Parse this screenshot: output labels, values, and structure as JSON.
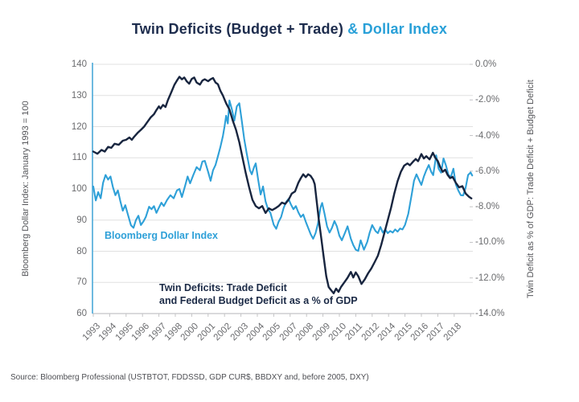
{
  "title": {
    "deficits_part": "Twin Deficits (Budget + Trade)",
    "dollar_part": " & Dollar Index"
  },
  "source": "Source: Bloomberg Professional (USTBTOT, FDDSSD, GDP CUR$, BBDXY and, before 2005, DXY)",
  "colors": {
    "navy": "#18253f",
    "blue": "#2ea0d8",
    "grid": "#e0e0e0",
    "axis_gray": "#c4c4c6",
    "tick_text": "#6a6b6e",
    "left_axis_line": "#4aa8d8"
  },
  "chart_data": {
    "type": "line",
    "x_unit": "tick index into x_labels (ticks evenly spaced; 1999, 2006, 2013 are skipped on the axis)",
    "x_labels": [
      "1993",
      "1994",
      "1995",
      "1996",
      "1997",
      "1998",
      "2000",
      "2001",
      "2002",
      "2003",
      "2004",
      "2005",
      "2007",
      "2008",
      "2009",
      "2010",
      "2011",
      "2012",
      "2014",
      "2015",
      "2016",
      "2017",
      "2018"
    ],
    "x_range": [
      0,
      23.2
    ],
    "grid": true,
    "legend_position": "none (in-plot text annotations)",
    "left_axis": {
      "label": "Bloomberg Dollar Index: January 1993 = 100",
      "ticks": [
        140,
        130,
        120,
        110,
        100,
        90,
        80,
        70,
        60
      ],
      "range": [
        60,
        140
      ]
    },
    "right_axis": {
      "label": "Twin Deficit as % of GDP: Trade Deficit + Budget Deficit",
      "tick_labels": [
        "0.0%",
        "-2.0%",
        "-4.0%",
        "-6.0%",
        "-8.0%",
        "-10.0%",
        "-12.0%",
        "-14.0%"
      ],
      "ticks": [
        0,
        -2,
        -4,
        -6,
        -8,
        -10,
        -12,
        -14
      ],
      "range": [
        -14,
        0
      ]
    },
    "series": [
      {
        "name": "Bloomberg Dollar Index",
        "axis": "left",
        "color": "#2ea0d8",
        "points": [
          [
            0,
            100.8
          ],
          [
            0.15,
            96.3
          ],
          [
            0.3,
            99
          ],
          [
            0.45,
            97
          ],
          [
            0.6,
            102
          ],
          [
            0.75,
            104.5
          ],
          [
            0.9,
            103
          ],
          [
            1.05,
            104
          ],
          [
            1.2,
            100.5
          ],
          [
            1.35,
            98
          ],
          [
            1.5,
            99.5
          ],
          [
            1.65,
            96
          ],
          [
            1.8,
            93
          ],
          [
            1.95,
            94.8
          ],
          [
            2.1,
            92
          ],
          [
            2.3,
            88.3
          ],
          [
            2.45,
            87.5
          ],
          [
            2.6,
            90
          ],
          [
            2.75,
            91.4
          ],
          [
            2.9,
            88.4
          ],
          [
            3.05,
            89.5
          ],
          [
            3.2,
            91
          ],
          [
            3.4,
            94.3
          ],
          [
            3.55,
            93.5
          ],
          [
            3.7,
            94.5
          ],
          [
            3.85,
            92.3
          ],
          [
            4,
            94
          ],
          [
            4.15,
            95.6
          ],
          [
            4.3,
            94.5
          ],
          [
            4.5,
            96.5
          ],
          [
            4.7,
            98
          ],
          [
            4.9,
            97
          ],
          [
            5.1,
            99.5
          ],
          [
            5.25,
            100
          ],
          [
            5.4,
            97.4
          ],
          [
            5.6,
            101
          ],
          [
            5.75,
            104
          ],
          [
            5.9,
            101.8
          ],
          [
            6.1,
            104.5
          ],
          [
            6.3,
            107
          ],
          [
            6.5,
            106
          ],
          [
            6.65,
            108.8
          ],
          [
            6.8,
            109
          ],
          [
            7,
            105.5
          ],
          [
            7.15,
            102.6
          ],
          [
            7.3,
            106
          ],
          [
            7.45,
            107.7
          ],
          [
            7.6,
            110.5
          ],
          [
            7.75,
            113.5
          ],
          [
            7.9,
            117
          ],
          [
            8,
            120
          ],
          [
            8.1,
            123.5
          ],
          [
            8.2,
            121
          ],
          [
            8.3,
            128.4
          ],
          [
            8.45,
            125.5
          ],
          [
            8.6,
            121.9
          ],
          [
            8.75,
            126.5
          ],
          [
            8.9,
            127.5
          ],
          [
            9.05,
            122
          ],
          [
            9.2,
            116
          ],
          [
            9.35,
            111.5
          ],
          [
            9.55,
            106
          ],
          [
            9.66,
            104.7
          ],
          [
            9.8,
            107
          ],
          [
            9.9,
            108.2
          ],
          [
            10.05,
            103
          ],
          [
            10.2,
            98.2
          ],
          [
            10.35,
            100.8
          ],
          [
            10.5,
            96
          ],
          [
            10.65,
            93.5
          ],
          [
            10.8,
            92.3
          ],
          [
            11,
            88.5
          ],
          [
            11.15,
            87.2
          ],
          [
            11.3,
            89.5
          ],
          [
            11.45,
            91
          ],
          [
            11.6,
            93.8
          ],
          [
            11.75,
            95.8
          ],
          [
            11.9,
            96.8
          ],
          [
            12.05,
            95
          ],
          [
            12.2,
            93.5
          ],
          [
            12.35,
            94.5
          ],
          [
            12.5,
            92.5
          ],
          [
            12.65,
            91
          ],
          [
            12.8,
            91.8
          ],
          [
            12.95,
            89.5
          ],
          [
            13.1,
            87.5
          ],
          [
            13.25,
            85.5
          ],
          [
            13.4,
            84
          ],
          [
            13.55,
            85.8
          ],
          [
            13.7,
            89
          ],
          [
            13.85,
            94
          ],
          [
            13.95,
            95.5
          ],
          [
            14.1,
            92
          ],
          [
            14.25,
            88
          ],
          [
            14.4,
            86
          ],
          [
            14.55,
            87.5
          ],
          [
            14.7,
            89.7
          ],
          [
            14.85,
            88
          ],
          [
            15,
            85
          ],
          [
            15.15,
            83.5
          ],
          [
            15.35,
            86
          ],
          [
            15.5,
            88
          ],
          [
            15.7,
            84
          ],
          [
            15.85,
            82
          ],
          [
            16,
            80.5
          ],
          [
            16.15,
            80.1
          ],
          [
            16.3,
            83.5
          ],
          [
            16.5,
            80.5
          ],
          [
            16.7,
            83
          ],
          [
            16.85,
            86
          ],
          [
            17,
            88.4
          ],
          [
            17.2,
            86.5
          ],
          [
            17.35,
            85.8
          ],
          [
            17.5,
            87.8
          ],
          [
            17.65,
            86
          ],
          [
            17.8,
            87
          ],
          [
            17.95,
            85.8
          ],
          [
            18.1,
            86.5
          ],
          [
            18.25,
            86
          ],
          [
            18.4,
            87
          ],
          [
            18.55,
            86.3
          ],
          [
            18.7,
            87.3
          ],
          [
            18.85,
            87
          ],
          [
            19,
            88.4
          ],
          [
            19.2,
            92
          ],
          [
            19.4,
            98
          ],
          [
            19.55,
            102.6
          ],
          [
            19.7,
            104.7
          ],
          [
            19.85,
            103
          ],
          [
            20,
            101.3
          ],
          [
            20.15,
            104
          ],
          [
            20.3,
            106
          ],
          [
            20.45,
            107.7
          ],
          [
            20.6,
            105.5
          ],
          [
            20.72,
            104.4
          ],
          [
            20.9,
            110.8
          ],
          [
            21.05,
            106.5
          ],
          [
            21.2,
            105.2
          ],
          [
            21.35,
            109.8
          ],
          [
            21.5,
            107.5
          ],
          [
            21.65,
            104.5
          ],
          [
            21.8,
            103.9
          ],
          [
            21.95,
            106.5
          ],
          [
            22.1,
            101.5
          ],
          [
            22.25,
            99.5
          ],
          [
            22.4,
            98
          ],
          [
            22.55,
            97.9
          ],
          [
            22.7,
            100.5
          ],
          [
            22.85,
            104.5
          ],
          [
            23,
            105.3
          ],
          [
            23.1,
            104.3
          ]
        ]
      },
      {
        "name": "Twin Deficits: Trade Deficit and Federal Budget Deficit as a % of GDP",
        "axis": "right",
        "color": "#18253f",
        "points": [
          [
            0,
            -4.9
          ],
          [
            0.25,
            -5.02
          ],
          [
            0.5,
            -4.81
          ],
          [
            0.7,
            -4.9
          ],
          [
            0.9,
            -4.64
          ],
          [
            1.1,
            -4.69
          ],
          [
            1.3,
            -4.46
          ],
          [
            1.55,
            -4.52
          ],
          [
            1.8,
            -4.29
          ],
          [
            2,
            -4.24
          ],
          [
            2.2,
            -4.11
          ],
          [
            2.35,
            -4.24
          ],
          [
            2.5,
            -4.06
          ],
          [
            2.7,
            -3.85
          ],
          [
            2.9,
            -3.68
          ],
          [
            3.1,
            -3.5
          ],
          [
            3.3,
            -3.24
          ],
          [
            3.5,
            -2.98
          ],
          [
            3.7,
            -2.8
          ],
          [
            3.85,
            -2.57
          ],
          [
            4,
            -2.36
          ],
          [
            4.1,
            -2.49
          ],
          [
            4.25,
            -2.28
          ],
          [
            4.4,
            -2.4
          ],
          [
            4.55,
            -2.01
          ],
          [
            4.75,
            -1.58
          ],
          [
            4.95,
            -1.14
          ],
          [
            5.1,
            -0.91
          ],
          [
            5.25,
            -0.7
          ],
          [
            5.4,
            -0.84
          ],
          [
            5.55,
            -0.74
          ],
          [
            5.7,
            -0.96
          ],
          [
            5.85,
            -1.09
          ],
          [
            6,
            -0.82
          ],
          [
            6.15,
            -0.74
          ],
          [
            6.3,
            -1.02
          ],
          [
            6.5,
            -1.14
          ],
          [
            6.65,
            -0.91
          ],
          [
            6.8,
            -0.84
          ],
          [
            7,
            -0.95
          ],
          [
            7.15,
            -0.84
          ],
          [
            7.3,
            -0.77
          ],
          [
            7.45,
            -1.02
          ],
          [
            7.6,
            -1.12
          ],
          [
            7.75,
            -1.49
          ],
          [
            7.9,
            -1.75
          ],
          [
            8.1,
            -2.19
          ],
          [
            8.3,
            -2.54
          ],
          [
            8.5,
            -3.15
          ],
          [
            8.7,
            -3.68
          ],
          [
            8.9,
            -4.38
          ],
          [
            9.1,
            -5.25
          ],
          [
            9.3,
            -6.13
          ],
          [
            9.5,
            -6.91
          ],
          [
            9.7,
            -7.61
          ],
          [
            9.9,
            -7.96
          ],
          [
            10.1,
            -8.09
          ],
          [
            10.3,
            -7.96
          ],
          [
            10.5,
            -8.35
          ],
          [
            10.7,
            -8.09
          ],
          [
            10.9,
            -8.19
          ],
          [
            11.1,
            -8.09
          ],
          [
            11.3,
            -7.96
          ],
          [
            11.5,
            -7.77
          ],
          [
            11.7,
            -7.84
          ],
          [
            11.9,
            -7.61
          ],
          [
            12.1,
            -7.26
          ],
          [
            12.3,
            -7.14
          ],
          [
            12.5,
            -6.65
          ],
          [
            12.65,
            -6.39
          ],
          [
            12.8,
            -6.18
          ],
          [
            12.95,
            -6.34
          ],
          [
            13.1,
            -6.18
          ],
          [
            13.25,
            -6.27
          ],
          [
            13.4,
            -6.48
          ],
          [
            13.5,
            -6.74
          ],
          [
            13.6,
            -7.53
          ],
          [
            13.75,
            -8.75
          ],
          [
            13.9,
            -9.8
          ],
          [
            14.05,
            -10.85
          ],
          [
            14.2,
            -11.9
          ],
          [
            14.35,
            -12.51
          ],
          [
            14.5,
            -12.69
          ],
          [
            14.65,
            -12.86
          ],
          [
            14.8,
            -12.6
          ],
          [
            14.95,
            -12.78
          ],
          [
            15.1,
            -12.51
          ],
          [
            15.3,
            -12.25
          ],
          [
            15.5,
            -11.99
          ],
          [
            15.7,
            -11.66
          ],
          [
            15.85,
            -11.97
          ],
          [
            16,
            -11.69
          ],
          [
            16.15,
            -11.9
          ],
          [
            16.35,
            -12.34
          ],
          [
            16.55,
            -12.08
          ],
          [
            16.75,
            -11.74
          ],
          [
            16.95,
            -11.46
          ],
          [
            17.15,
            -11.11
          ],
          [
            17.35,
            -10.75
          ],
          [
            17.55,
            -10.15
          ],
          [
            17.75,
            -9.45
          ],
          [
            17.95,
            -8.75
          ],
          [
            18.15,
            -8.05
          ],
          [
            18.35,
            -7.26
          ],
          [
            18.55,
            -6.56
          ],
          [
            18.75,
            -6.04
          ],
          [
            18.95,
            -5.69
          ],
          [
            19.15,
            -5.57
          ],
          [
            19.3,
            -5.67
          ],
          [
            19.5,
            -5.46
          ],
          [
            19.65,
            -5.32
          ],
          [
            19.8,
            -5.44
          ],
          [
            20,
            -5.04
          ],
          [
            20.15,
            -5.29
          ],
          [
            20.3,
            -5.16
          ],
          [
            20.5,
            -5.34
          ],
          [
            20.7,
            -4.97
          ],
          [
            20.85,
            -5.25
          ],
          [
            21,
            -5.43
          ],
          [
            21.15,
            -5.78
          ],
          [
            21.3,
            -6.04
          ],
          [
            21.45,
            -5.92
          ],
          [
            21.6,
            -6.21
          ],
          [
            21.75,
            -6.39
          ],
          [
            21.9,
            -6.32
          ],
          [
            22.1,
            -6.65
          ],
          [
            22.3,
            -6.91
          ],
          [
            22.5,
            -6.84
          ],
          [
            22.7,
            -7.26
          ],
          [
            22.9,
            -7.44
          ],
          [
            23.05,
            -7.53
          ]
        ]
      }
    ],
    "annotations": [
      {
        "text": "Bloomberg Dollar Index",
        "color": "#2ea0d8"
      },
      {
        "lines": [
          "Twin Deficits: Trade Deficit",
          "and Federal Budget Deficit as a % of GDP"
        ],
        "color": "#1b2a46"
      }
    ]
  }
}
